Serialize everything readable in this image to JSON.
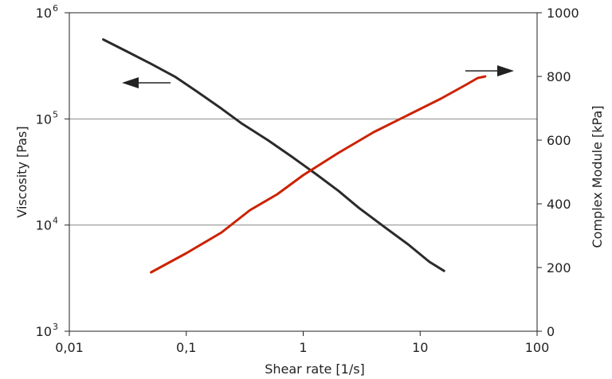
{
  "chart_data": {
    "type": "line",
    "title": "",
    "xlabel": "Shear rate [1/s]",
    "ylabel_left": "Viscosity [Pas]",
    "ylabel_right": "Complex Module [kPa]",
    "x_scale": "log",
    "y_left_scale": "log",
    "y_right_scale": "linear",
    "xlim": [
      0.01,
      100
    ],
    "ylim_left": [
      1000,
      1000000
    ],
    "ylim_right": [
      0,
      1000
    ],
    "x_ticks": [
      {
        "value": 0.01,
        "label": "0,01"
      },
      {
        "value": 0.1,
        "label": "0,1"
      },
      {
        "value": 1,
        "label": "1"
      },
      {
        "value": 10,
        "label": "10"
      },
      {
        "value": 100,
        "label": "100"
      }
    ],
    "y_left_ticks": [
      {
        "value": 1000,
        "base": "10",
        "exp": "3"
      },
      {
        "value": 10000,
        "base": "10",
        "exp": "4"
      },
      {
        "value": 100000,
        "base": "10",
        "exp": "5"
      },
      {
        "value": 1000000,
        "base": "10",
        "exp": "6"
      }
    ],
    "y_right_ticks": [
      {
        "value": 0,
        "label": "0"
      },
      {
        "value": 200,
        "label": "200"
      },
      {
        "value": 400,
        "label": "400"
      },
      {
        "value": 600,
        "label": "600"
      },
      {
        "value": 800,
        "label": "800"
      },
      {
        "value": 1000,
        "label": "1000"
      }
    ],
    "gridlines_y_left": [
      10000,
      100000
    ],
    "series": [
      {
        "axis": "left",
        "color": "#2a2a2a",
        "points": [
          [
            0.0195,
            560000
          ],
          [
            0.03,
            440000
          ],
          [
            0.05,
            330000
          ],
          [
            0.08,
            250000
          ],
          [
            0.12,
            185000
          ],
          [
            0.2,
            125000
          ],
          [
            0.3,
            90000
          ],
          [
            0.5,
            63000
          ],
          [
            0.8,
            44000
          ],
          [
            1.3,
            30000
          ],
          [
            2,
            21000
          ],
          [
            3,
            14500
          ],
          [
            5,
            9500
          ],
          [
            8,
            6500
          ],
          [
            12,
            4500
          ],
          [
            16,
            3700
          ]
        ]
      },
      {
        "axis": "right",
        "color": "#cc2200",
        "points": [
          [
            0.05,
            185
          ],
          [
            0.1,
            245
          ],
          [
            0.2,
            310
          ],
          [
            0.35,
            380
          ],
          [
            0.6,
            430
          ],
          [
            1,
            490
          ],
          [
            2,
            560
          ],
          [
            4,
            625
          ],
          [
            8,
            680
          ],
          [
            15,
            730
          ],
          [
            25,
            775
          ],
          [
            31,
            795
          ],
          [
            36,
            800
          ]
        ]
      }
    ],
    "annotations": [
      {
        "type": "arrow",
        "direction": "left",
        "series_axis": "left",
        "color": "#222222"
      },
      {
        "type": "arrow",
        "direction": "right",
        "series_axis": "right",
        "color": "#222222"
      }
    ]
  }
}
